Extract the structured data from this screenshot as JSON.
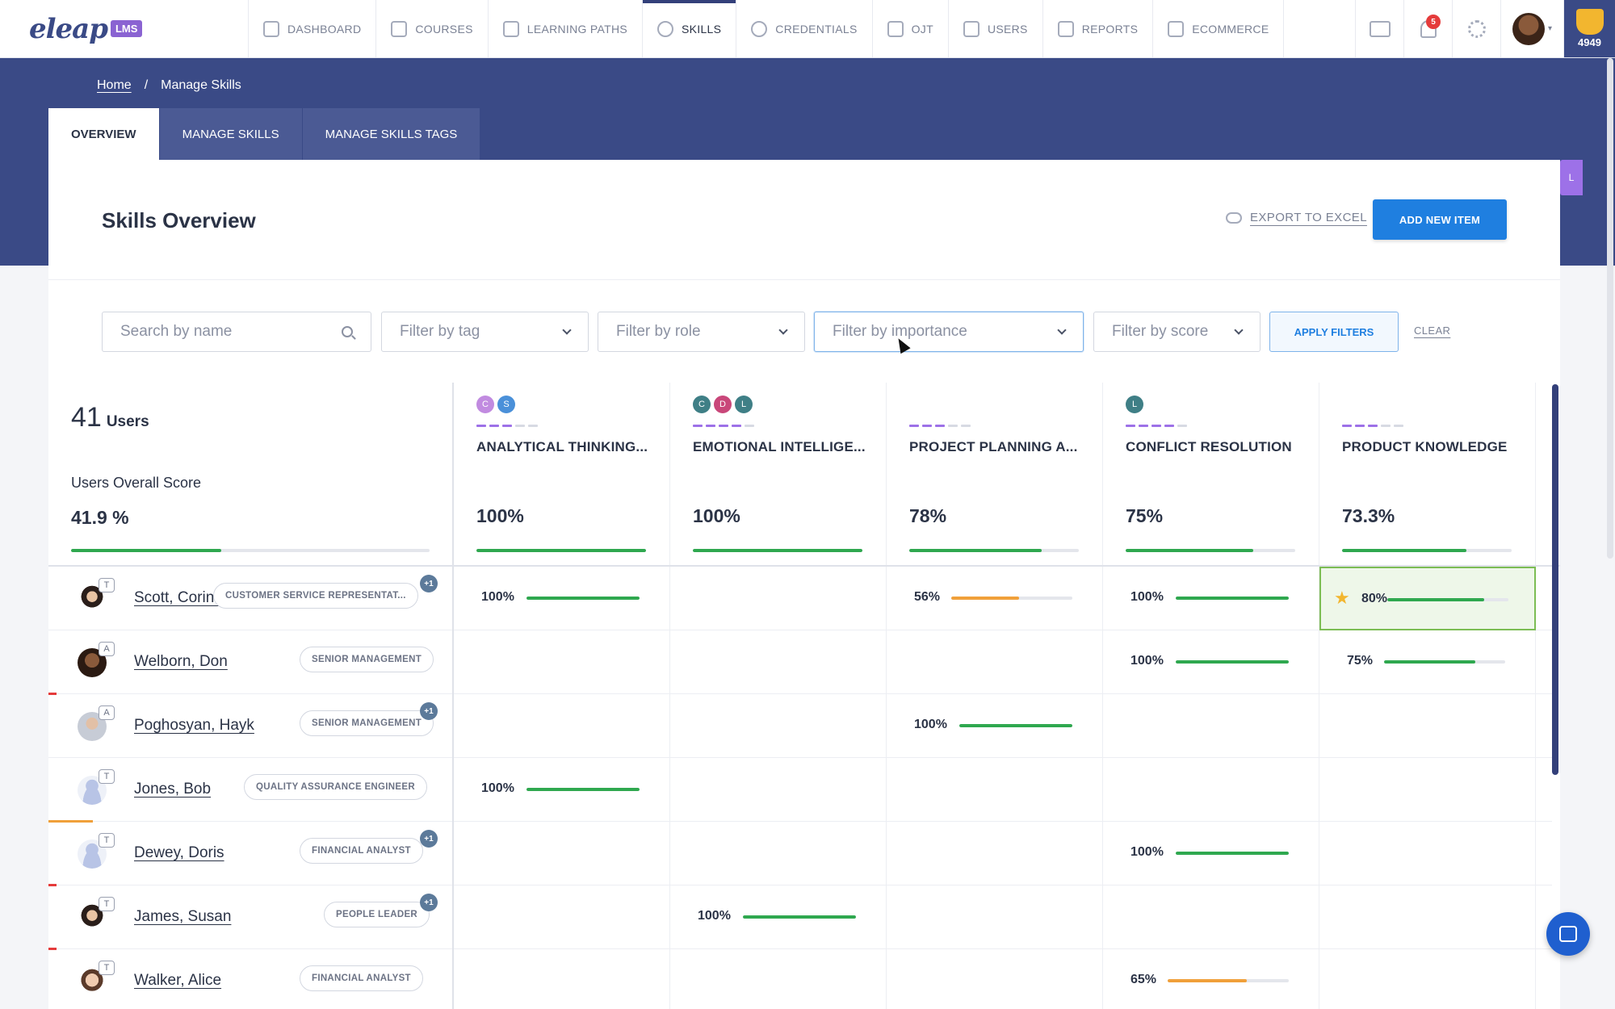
{
  "app": {
    "logo_text": "eleap",
    "logo_badge": "LMS"
  },
  "nav": {
    "items": [
      {
        "label": "DASHBOARD",
        "icon": "gauge-icon",
        "active": false
      },
      {
        "label": "COURSES",
        "icon": "books-icon",
        "active": false
      },
      {
        "label": "LEARNING PATHS",
        "icon": "path-icon",
        "active": false
      },
      {
        "label": "SKILLS",
        "icon": "gear-icon",
        "active": true
      },
      {
        "label": "CREDENTIALS",
        "icon": "badge-icon",
        "active": false
      },
      {
        "label": "OJT",
        "icon": "cloud-icon",
        "active": false
      },
      {
        "label": "USERS",
        "icon": "user-icon",
        "active": false
      },
      {
        "label": "REPORTS",
        "icon": "report-icon",
        "active": false
      },
      {
        "label": "ECOMMERCE",
        "icon": "basket-icon",
        "active": false
      }
    ],
    "notifications": "5",
    "points": "4949"
  },
  "breadcrumb": {
    "home": "Home",
    "separator": "/",
    "current": "Manage Skills"
  },
  "tabs": [
    "OVERVIEW",
    "MANAGE SKILLS",
    "MANAGE SKILLS TAGS"
  ],
  "side_tab": "L",
  "page": {
    "title": "Skills Overview",
    "export_label": "EXPORT TO EXCEL",
    "add_label": "ADD NEW ITEM"
  },
  "filters": {
    "search_placeholder": "Search by name",
    "tag": "Filter by tag",
    "role": "Filter by role",
    "importance": "Filter by importance",
    "score": "Filter by score",
    "apply": "APPLY FILTERS",
    "clear": "CLEAR"
  },
  "summary": {
    "count": "41",
    "count_label": "Users",
    "score_label": "Users Overall Score",
    "score": "41.9 %",
    "score_fraction": 0.419
  },
  "colors": {
    "primary": "#3a4a86",
    "accent": "#1f7fe0",
    "good": "#2fa84f",
    "warn": "#f0a03a",
    "purple": "#9d71e8"
  },
  "skills": [
    {
      "name": "ANALYTICAL THINKING...",
      "pct": "100%",
      "value": 1.0,
      "avatars": [
        {
          "letter": "C",
          "color": "#c18be0"
        },
        {
          "letter": "S",
          "color": "#4a90d9"
        }
      ],
      "dashes": 3
    },
    {
      "name": "EMOTIONAL INTELLIGE...",
      "pct": "100%",
      "value": 1.0,
      "avatars": [
        {
          "letter": "C",
          "color": "#3f7f86"
        },
        {
          "letter": "D",
          "color": "#c9477a"
        },
        {
          "letter": "L",
          "color": "#3f7f86"
        }
      ],
      "dashes": 4
    },
    {
      "name": "PROJECT PLANNING A...",
      "pct": "78%",
      "value": 0.78,
      "avatars": [],
      "dashes": 3
    },
    {
      "name": "CONFLICT RESOLUTION",
      "pct": "75%",
      "value": 0.75,
      "avatars": [
        {
          "letter": "L",
          "color": "#3f7f86"
        }
      ],
      "dashes": 4
    },
    {
      "name": "PRODUCT KNOWLEDGE",
      "pct": "73.3%",
      "value": 0.733,
      "avatars": [],
      "dashes": 3
    }
  ],
  "users": [
    {
      "name": "Scott, Corine",
      "badge": "T",
      "role": "CUSTOMER SERVICE REPRESENTAT...",
      "plus": "+1",
      "avatar": "female",
      "mark": "",
      "scores": [
        {
          "pct": "100%",
          "value": 1.0
        },
        null,
        {
          "pct": "56%",
          "value": 0.56
        },
        {
          "pct": "100%",
          "value": 1.0
        },
        {
          "pct": "80%",
          "value": 0.8,
          "star": true,
          "highlight": true
        }
      ]
    },
    {
      "name": "Welborn, Don",
      "badge": "A",
      "role": "SENIOR MANAGEMENT",
      "plus": "",
      "avatar": "male",
      "mark": "#e53b3b",
      "scores": [
        null,
        null,
        null,
        {
          "pct": "100%",
          "value": 1.0
        },
        {
          "pct": "75%",
          "value": 0.75
        }
      ]
    },
    {
      "name": "Poghosyan, Hayk",
      "badge": "A",
      "role": "SENIOR MANAGEMENT",
      "plus": "+1",
      "avatar": "male2",
      "mark": "",
      "scores": [
        null,
        null,
        {
          "pct": "100%",
          "value": 1.0
        },
        null,
        null
      ]
    },
    {
      "name": "Jones, Bob",
      "badge": "T",
      "role": "QUALITY ASSURANCE ENGINEER",
      "plus": "",
      "avatar": "placeholder",
      "mark": "#f0a03a",
      "scores": [
        {
          "pct": "100%",
          "value": 1.0
        },
        null,
        null,
        null,
        null
      ]
    },
    {
      "name": "Dewey, Doris",
      "badge": "T",
      "role": "FINANCIAL ANALYST",
      "plus": "+1",
      "avatar": "placeholder",
      "mark": "#e53b3b",
      "scores": [
        null,
        null,
        null,
        {
          "pct": "100%",
          "value": 1.0
        },
        null
      ]
    },
    {
      "name": "James, Susan",
      "badge": "T",
      "role": "PEOPLE LEADER",
      "plus": "+1",
      "avatar": "female",
      "mark": "#e53b3b",
      "scores": [
        null,
        {
          "pct": "100%",
          "value": 1.0
        },
        null,
        null,
        null
      ]
    },
    {
      "name": "Walker, Alice",
      "badge": "T",
      "role": "FINANCIAL ANALYST",
      "plus": "",
      "avatar": "female2",
      "mark": "",
      "scores": [
        null,
        null,
        null,
        {
          "pct": "65%",
          "value": 0.65
        },
        null
      ]
    }
  ]
}
